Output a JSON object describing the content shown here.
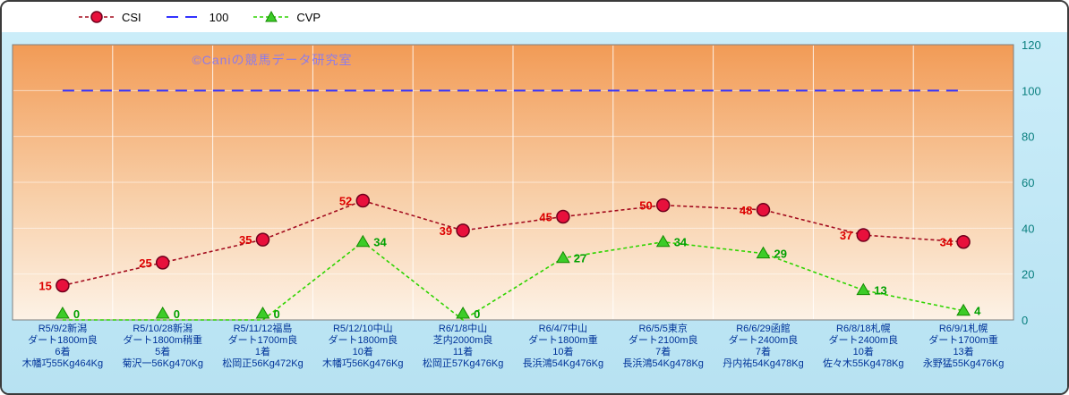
{
  "watermark": "©Caniの競馬データ研究室",
  "colors": {
    "frame_border": "#3a3a3a",
    "outer_bg_top": "#CBEDF9",
    "outer_bg_bottom": "#B7E2F2",
    "plot_bg_top": "#F29B56",
    "plot_bg_mid": "#F8CFA8",
    "plot_bg_bottom": "#FDF2E6",
    "watermark_color": "#8F7CE8",
    "ytick_color": "#0A7F7F",
    "xlabel_color": "#003399"
  },
  "chart_data": {
    "type": "line",
    "title": "",
    "watermark": "©Caniの競馬データ研究室",
    "ylim": [
      0,
      120
    ],
    "yticks": [
      0,
      20,
      40,
      60,
      80,
      100,
      120
    ],
    "legend_position": "top",
    "grid": true,
    "categories": [
      [
        "R5/9/2新潟",
        "ダート1800m良",
        "6着",
        "木幡巧55Kg464Kg"
      ],
      [
        "R5/10/28新潟",
        "ダート1800m稍重",
        "5着",
        "菊沢一56Kg470Kg"
      ],
      [
        "R5/11/12福島",
        "ダート1700m良",
        "1着",
        "松岡正56Kg472Kg"
      ],
      [
        "R5/12/10中山",
        "ダート1800m良",
        "10着",
        "木幡巧56Kg476Kg"
      ],
      [
        "R6/1/8中山",
        "芝内2000m良",
        "11着",
        "松岡正57Kg476Kg"
      ],
      [
        "R6/4/7中山",
        "ダート1800m重",
        "10着",
        "長浜鴻54Kg476Kg"
      ],
      [
        "R6/5/5東京",
        "ダート2100m良",
        "7着",
        "長浜鴻54Kg478Kg"
      ],
      [
        "R6/6/29函館",
        "ダート2400m良",
        "7着",
        "丹内祐54Kg478Kg"
      ],
      [
        "R6/8/18札幌",
        "ダート2400m良",
        "10着",
        "佐々木55Kg478Kg"
      ],
      [
        "R6/9/1札幌",
        "ダート1700m重",
        "13着",
        "永野猛55Kg476Kg"
      ]
    ],
    "series": [
      {
        "name": "CSI",
        "values": [
          15,
          25,
          35,
          52,
          39,
          45,
          50,
          48,
          37,
          34
        ],
        "line_color": "#A30B1E",
        "dash": "4 3",
        "line_width": 1.6,
        "marker": "circle",
        "marker_fill": "#E8103C",
        "marker_stroke": "#70001C",
        "label_color": "#DD0000",
        "label_side": "left",
        "show_labels": true
      },
      {
        "name": "100",
        "values": [
          100,
          100,
          100,
          100,
          100,
          100,
          100,
          100,
          100,
          100
        ],
        "line_color": "#3232FF",
        "dash": "13 8",
        "line_width": 2,
        "marker": "none",
        "show_labels": false
      },
      {
        "name": "CVP",
        "values": [
          0,
          0,
          0,
          34,
          0,
          27,
          34,
          29,
          13,
          4
        ],
        "line_color": "#2FD400",
        "dash": "4 3",
        "line_width": 1.6,
        "marker": "triangle",
        "marker_fill": "#3CCC28",
        "marker_stroke": "#148A00",
        "label_color": "#00A000",
        "label_side": "right",
        "show_labels": true
      }
    ]
  }
}
